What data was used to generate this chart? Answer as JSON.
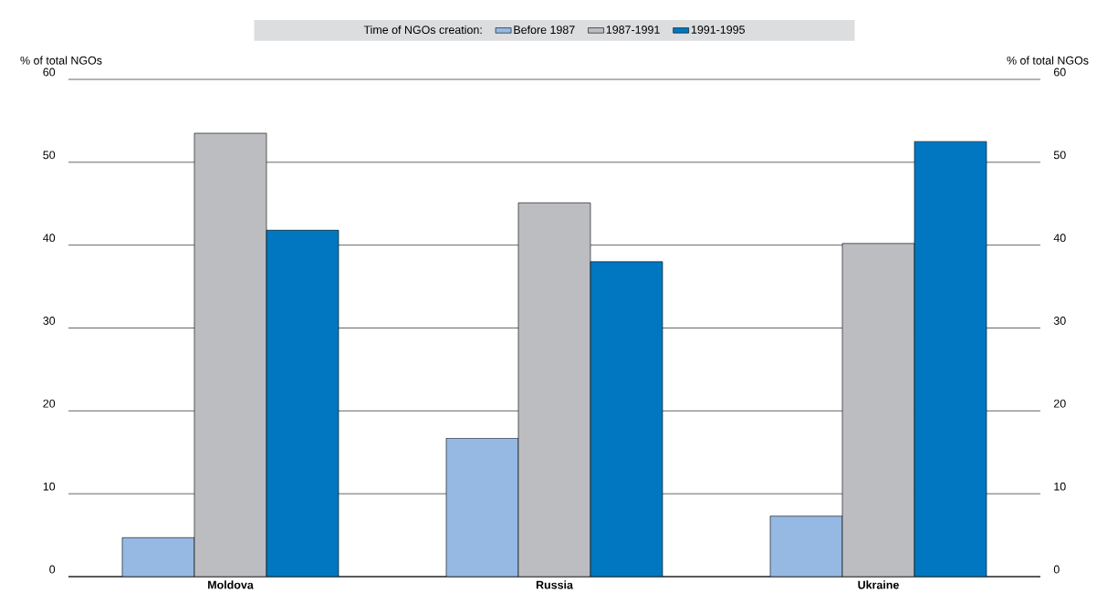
{
  "chart_data": {
    "type": "bar",
    "legend_title": "Time of NGOs creation:",
    "categories": [
      "Moldova",
      "Russia",
      "Ukraine"
    ],
    "series": [
      {
        "name": "Before 1987",
        "color": "#96b9e3",
        "values": [
          4.7,
          16.7,
          7.3
        ]
      },
      {
        "name": "1987-1991",
        "color": "#bcbdc1",
        "values": [
          53.5,
          45.1,
          40.2
        ]
      },
      {
        "name": "1991-1995",
        "color": "#0077c0",
        "values": [
          41.8,
          38.0,
          52.5
        ]
      }
    ],
    "ylabel": "% of total NGOs",
    "y2label": "% of total NGOs",
    "ylim": [
      0,
      60
    ],
    "yticks": [
      0,
      10,
      20,
      30,
      40,
      50,
      60
    ],
    "y2lim": [
      0,
      60
    ],
    "y2ticks": [
      0,
      10,
      20,
      30,
      40,
      50,
      60
    ],
    "grid": "y",
    "legend": "top"
  }
}
